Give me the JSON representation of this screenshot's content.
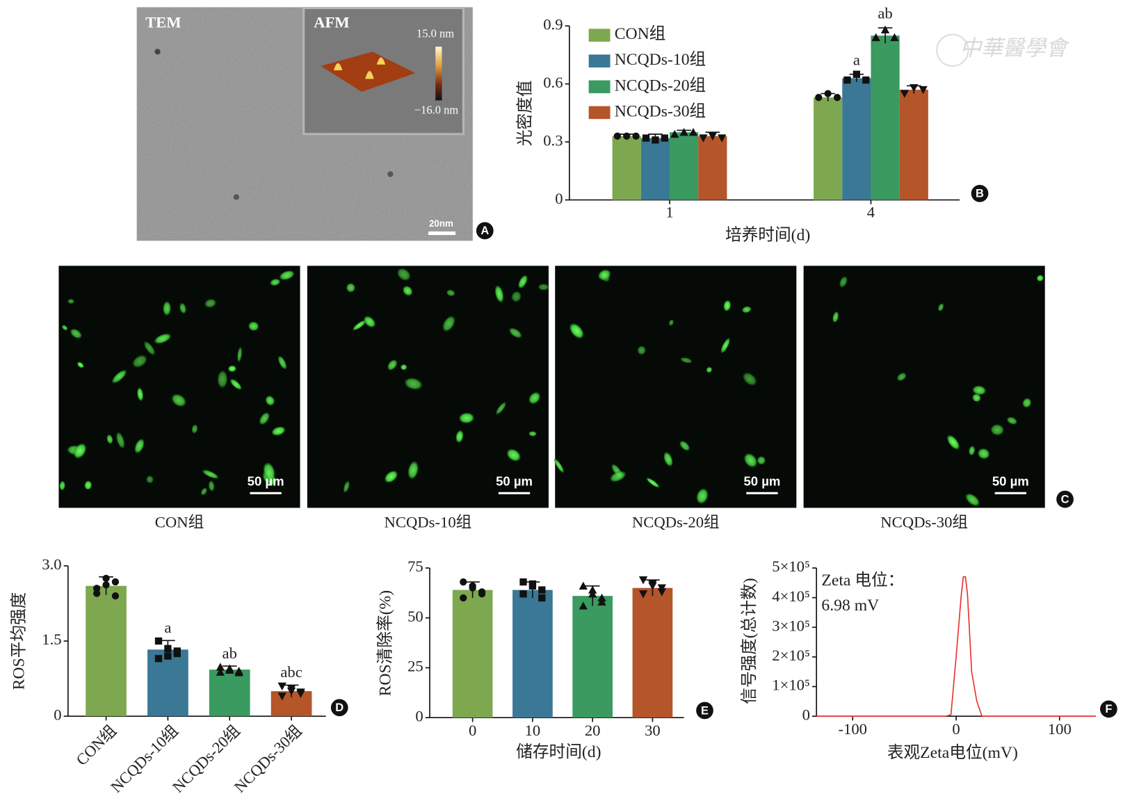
{
  "panel_labels": [
    "A",
    "B",
    "C",
    "D",
    "E",
    "F"
  ],
  "watermark": "中華醫學會",
  "tem": {
    "label": "TEM",
    "inset_label": "AFM",
    "scale_max": "15.0 nm",
    "scale_min": "−16.0 nm",
    "scale_bar": "20nm"
  },
  "fluorescence": {
    "panels": [
      {
        "caption": "CON组",
        "scale_bar": "50 µm"
      },
      {
        "caption": "NCQDs-10组",
        "scale_bar": "50 µm"
      },
      {
        "caption": "NCQDs-20组",
        "scale_bar": "50 µm"
      },
      {
        "caption": "NCQDs-30组",
        "scale_bar": "50 µm"
      }
    ]
  },
  "chart_data": [
    {
      "type": "grouped_bar",
      "categories": [
        "1",
        "4"
      ],
      "xlabel": "培养时间(d)",
      "ylabel": "光密度值",
      "ylim": [
        0,
        0.9
      ],
      "yticks": [
        0,
        0.3,
        0.6,
        0.9
      ],
      "legend": "upper left",
      "series": [
        {
          "name": "CON组",
          "color": "#7ea84f",
          "marker": "circle",
          "values": [
            0.33,
            0.53
          ],
          "errors": [
            0.01,
            0.02
          ],
          "points": [
            [
              0.33,
              0.33,
              0.33
            ],
            [
              0.53,
              0.55,
              0.53
            ]
          ]
        },
        {
          "name": "NCQDs-10组",
          "color": "#3a7895",
          "marker": "square",
          "values": [
            0.32,
            0.63
          ],
          "errors": [
            0.02,
            0.02
          ],
          "points": [
            [
              0.32,
              0.31,
              0.32
            ],
            [
              0.62,
              0.65,
              0.62
            ]
          ],
          "value_annotations": [
            null,
            "a"
          ]
        },
        {
          "name": "NCQDs-20组",
          "color": "#3a9a60",
          "marker": "triangle",
          "values": [
            0.35,
            0.85
          ],
          "errors": [
            0.01,
            0.04
          ],
          "points": [
            [
              0.34,
              0.35,
              0.35
            ],
            [
              0.84,
              0.88,
              0.84
            ]
          ],
          "value_annotations": [
            null,
            "ab"
          ]
        },
        {
          "name": "NCQDs-30组",
          "color": "#b5552a",
          "marker": "triangle-down",
          "values": [
            0.33,
            0.57
          ],
          "errors": [
            0.02,
            0.02
          ],
          "points": [
            [
              0.32,
              0.33,
              0.32
            ],
            [
              0.55,
              0.58,
              0.57
            ]
          ]
        }
      ]
    },
    {
      "type": "bar",
      "categories": [
        "CON组",
        "NCQDs-10组",
        "NCQDs-20组",
        "NCQDs-30组"
      ],
      "ylabel": "ROS平均强度",
      "values": [
        2.6,
        1.33,
        0.93,
        0.5
      ],
      "errors": [
        0.18,
        0.18,
        0.07,
        0.12
      ],
      "colors": [
        "#7ea84f",
        "#3a7895",
        "#3a9a60",
        "#b5552a"
      ],
      "markers": [
        "circle",
        "square",
        "triangle",
        "triangle-down"
      ],
      "points": [
        [
          2.55,
          2.75,
          2.68,
          2.45,
          2.62,
          2.4
        ],
        [
          1.5,
          1.35,
          1.25,
          1.15,
          1.2,
          1.3
        ],
        [
          0.98,
          0.95,
          0.9,
          0.88,
          0.92,
          0.87
        ],
        [
          0.6,
          0.5,
          0.45,
          0.4,
          0.55,
          0.48
        ]
      ],
      "value_annotations": [
        null,
        "a",
        "ab",
        "abc"
      ],
      "ylim": [
        0,
        3
      ],
      "yticks": [
        0,
        1.5,
        {
          "value": 3,
          "label": "3.0"
        }
      ]
    },
    {
      "type": "bar",
      "categories": [
        "0",
        "10",
        "20",
        "30"
      ],
      "xlabel": "储存时间(d)",
      "ylabel": "ROS清除率(%)",
      "values": [
        64,
        64,
        61,
        65
      ],
      "errors": [
        4,
        4,
        5,
        4
      ],
      "colors": [
        "#7ea84f",
        "#3a7895",
        "#3a9a60",
        "#b5552a"
      ],
      "markers": [
        "circle",
        "square",
        "triangle",
        "triangle-down"
      ],
      "points": [
        [
          68,
          66,
          62,
          60,
          65,
          63
        ],
        [
          68,
          66,
          60,
          62,
          67,
          64
        ],
        [
          66,
          62,
          58,
          56,
          64,
          60
        ],
        [
          69,
          67,
          65,
          62,
          66,
          63
        ]
      ],
      "ylim": [
        0,
        75
      ],
      "yticks": [
        0,
        25,
        50,
        75
      ]
    },
    {
      "type": "line",
      "xlabel": "表观Zeta电位(mV)",
      "ylabel": "信号强度(总计数)",
      "annotations": [
        "Zeta 电位：",
        "6.98 mV"
      ],
      "x": [
        -135,
        -10,
        -5,
        0,
        5,
        7,
        9,
        11,
        15,
        20,
        25,
        135
      ],
      "series": [
        {
          "color": "#e8322f",
          "values": [
            0,
            0,
            5000,
            200000,
            410000,
            470000,
            470000,
            410000,
            150000,
            50000,
            0,
            0
          ]
        }
      ],
      "xlim": [
        -135,
        135
      ],
      "xticks": [
        -100,
        0,
        100
      ],
      "ylim": [
        0,
        500000
      ],
      "yticks": [
        0,
        {
          "value": 100000,
          "label": "1×10⁵"
        },
        {
          "value": 200000,
          "label": "2×10⁵"
        },
        {
          "value": 300000,
          "label": "3×10⁵"
        },
        {
          "value": 400000,
          "label": "4×10⁵"
        },
        {
          "value": 500000,
          "label": "5×10⁵"
        }
      ]
    }
  ]
}
